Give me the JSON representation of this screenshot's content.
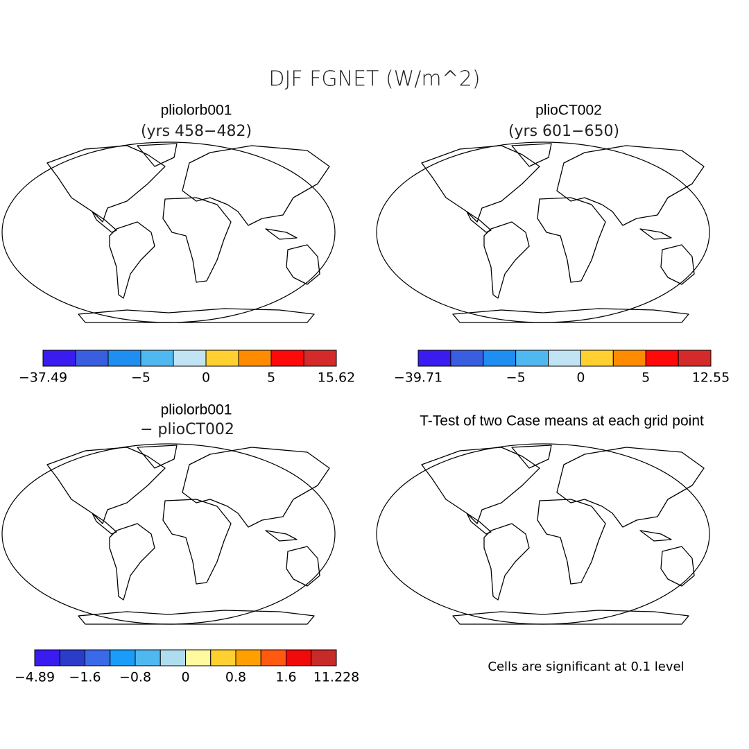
{
  "title": "DJF FGNET (W/m^2)",
  "panels": [
    {
      "title": "pliolorb001",
      "subtitle": "(yrs 458−482)",
      "colorbar": {
        "colors": [
          "#3a1cf0",
          "#3a5ee0",
          "#1e8ef0",
          "#50b8f0",
          "#c0e4f4",
          "#ffd030",
          "#ff8c00",
          "#ff0a0a",
          "#d42a2a"
        ],
        "labels": [
          "−37.49",
          null,
          null,
          "−5",
          null,
          "0",
          null,
          "5",
          null,
          "15.62"
        ]
      }
    },
    {
      "title": "plioCT002",
      "subtitle": "(yrs 601−650)",
      "colorbar": {
        "colors": [
          "#3a1cf0",
          "#3a5ee0",
          "#1e8ef0",
          "#50b8f0",
          "#c0e4f4",
          "#ffd030",
          "#ff8c00",
          "#ff0a0a",
          "#d42a2a"
        ],
        "labels": [
          "−39.71",
          null,
          null,
          "−5",
          null,
          "0",
          null,
          "5",
          null,
          "12.55"
        ]
      }
    },
    {
      "title": "pliolorb001",
      "subtitle": "− plioCT002",
      "colorbar": {
        "colors": [
          "#3a1cf0",
          "#2a3cc8",
          "#3a6ae8",
          "#1a9cf8",
          "#50b8f0",
          "#b0dcf0",
          "#fffaa0",
          "#ffd030",
          "#ffa000",
          "#ff5a10",
          "#f00a0a",
          "#c82a2a"
        ],
        "labels": [
          "−4.89",
          null,
          "−1.6",
          null,
          "−0.8",
          null,
          "0",
          null,
          "0.8",
          null,
          "1.6",
          null,
          "11.228"
        ]
      }
    },
    {
      "title": "T-Test of two Case means at each grid point",
      "note": "Cells are significant at 0.1 level"
    }
  ]
}
